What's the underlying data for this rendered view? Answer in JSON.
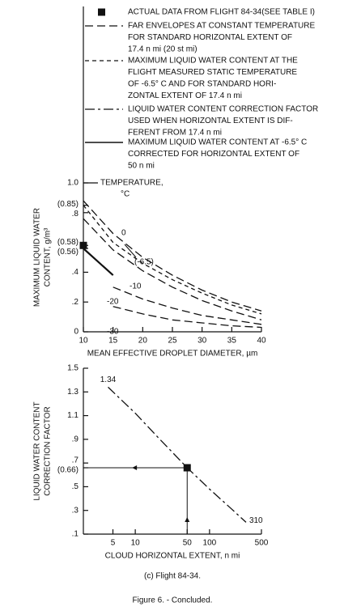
{
  "chart_data": [
    {
      "type": "line",
      "legend": [
        {
          "marker": "square",
          "text": [
            "ACTUAL DATA FROM FLIGHT 84-34(SEE TABLE I)"
          ]
        },
        {
          "style": "long-dash",
          "text": [
            "FAR ENVELOPES AT CONSTANT TEMPERATURE",
            "FOR STANDARD HORIZONTAL EXTENT OF",
            "17.4 n mi (20 st mi)"
          ]
        },
        {
          "style": "short-dash",
          "text": [
            "MAXIMUM LIQUID WATER CONTENT AT THE",
            "FLIGHT MEASURED STATIC TEMPERATURE",
            "OF -6.5° C AND FOR STANDARD HORI-",
            "ZONTAL EXTENT OF 17.4 n mi"
          ]
        },
        {
          "style": "dash-dot",
          "text": [
            "LIQUID WATER CONTENT CORRECTION FACTOR",
            "USED WHEN HORIZONTAL EXTENT IS DIF-",
            "FERENT FROM 17.4 n mi"
          ]
        },
        {
          "style": "solid",
          "text": [
            "MAXIMUM LIQUID WATER CONTENT AT -6.5° C",
            "CORRECTED FOR HORIZONTAL EXTENT OF",
            "50 n mi"
          ]
        }
      ],
      "annotations": [
        "TEMPERATURE,",
        "°C"
      ],
      "ylabel": [
        "MAXIMUM LIQUID WATER",
        "CONTENT, g/m³"
      ],
      "xlabel": "MEAN EFFECTIVE DROPLET DIAMETER, µm",
      "xlim": [
        10,
        40
      ],
      "xticks": [
        10,
        15,
        20,
        25,
        30,
        35,
        40
      ],
      "ylim": [
        0,
        1.0
      ],
      "yticks": [
        0,
        {
          "value": 0.2,
          "label": ".2"
        },
        {
          "value": 0.4,
          "label": ".4"
        },
        {
          "value": 0.56,
          "label": "(0.56)"
        },
        {
          "value": 0.58,
          "label": "(0.58)"
        },
        {
          "value": 0.8,
          "label": ".8"
        },
        {
          "value": 0.85,
          "label": "(0.85)"
        },
        {
          "value": 1.0,
          "label": "1.0"
        }
      ],
      "series": [
        {
          "name": "0",
          "style": "long-dash",
          "color": "#111",
          "x": [
            10,
            15,
            20,
            25,
            30,
            35,
            40
          ],
          "values": [
            0.88,
            0.66,
            0.5,
            0.38,
            0.28,
            0.2,
            0.14
          ]
        },
        {
          "name": "(-6.5)",
          "style": "short-dash",
          "color": "#111",
          "x": [
            10,
            15,
            20,
            25,
            30,
            35,
            40
          ],
          "values": [
            0.85,
            0.6,
            0.46,
            0.35,
            0.26,
            0.18,
            0.12
          ]
        },
        {
          "name": "-10",
          "style": "long-dash",
          "color": "#111",
          "x": [
            10,
            15,
            20,
            25,
            30,
            35,
            40
          ],
          "values": [
            0.76,
            0.55,
            0.41,
            0.3,
            0.21,
            0.14,
            0.08
          ]
        },
        {
          "name": "-20",
          "style": "long-dash",
          "color": "#111",
          "x": [
            15,
            20,
            25,
            30,
            35,
            40
          ],
          "values": [
            0.3,
            0.22,
            0.16,
            0.11,
            0.08,
            0.05
          ]
        },
        {
          "name": "-30",
          "style": "long-dash",
          "color": "#111",
          "x": [
            15,
            20,
            25,
            30,
            35,
            40
          ],
          "values": [
            0.17,
            0.12,
            0.08,
            0.06,
            0.04,
            0.03
          ]
        },
        {
          "style": "solid",
          "color": "#111",
          "x": [
            10,
            15
          ],
          "values": [
            0.56,
            0.38
          ]
        },
        {
          "marker": "square",
          "color": "#111",
          "x": [
            10
          ],
          "values": [
            0.58
          ]
        }
      ]
    },
    {
      "type": "line",
      "ylabel": [
        "LIQUID WATER CONTENT",
        "CORRECTION FACTOR"
      ],
      "xlabel": "CLOUD HORIZONTAL EXTENT, n mi",
      "xscale": "log",
      "xlim": [
        2,
        500
      ],
      "xticks": [
        5,
        10,
        50,
        100,
        500
      ],
      "ylim": [
        0.1,
        1.5
      ],
      "yticks": [
        {
          "value": 0.1,
          "label": ".1"
        },
        {
          "value": 0.3,
          "label": ".3"
        },
        {
          "value": 0.5,
          "label": ".5"
        },
        {
          "value": 0.66,
          "label": "(0.66)"
        },
        {
          "value": 0.7,
          "label": ".7"
        },
        {
          "value": 0.9,
          "label": ".9"
        },
        1.1,
        1.3,
        1.5
      ],
      "annotations": [
        {
          "label": "1.34",
          "x": 4.3,
          "y": 1.34
        },
        {
          "label": "310",
          "x": 310,
          "y": 0.2
        }
      ],
      "series": [
        {
          "style": "dash-dot",
          "color": "#111",
          "x": [
            4.3,
            10,
            20,
            50,
            100,
            200,
            310
          ],
          "values": [
            1.34,
            1.12,
            0.92,
            0.66,
            0.48,
            0.31,
            0.2
          ]
        },
        {
          "marker": "square",
          "color": "#111",
          "x": [
            50
          ],
          "values": [
            0.66
          ],
          "guides": true
        }
      ]
    }
  ],
  "caption": "(c) Flight 84-34.",
  "figure": "Figure 6. - Concluded."
}
